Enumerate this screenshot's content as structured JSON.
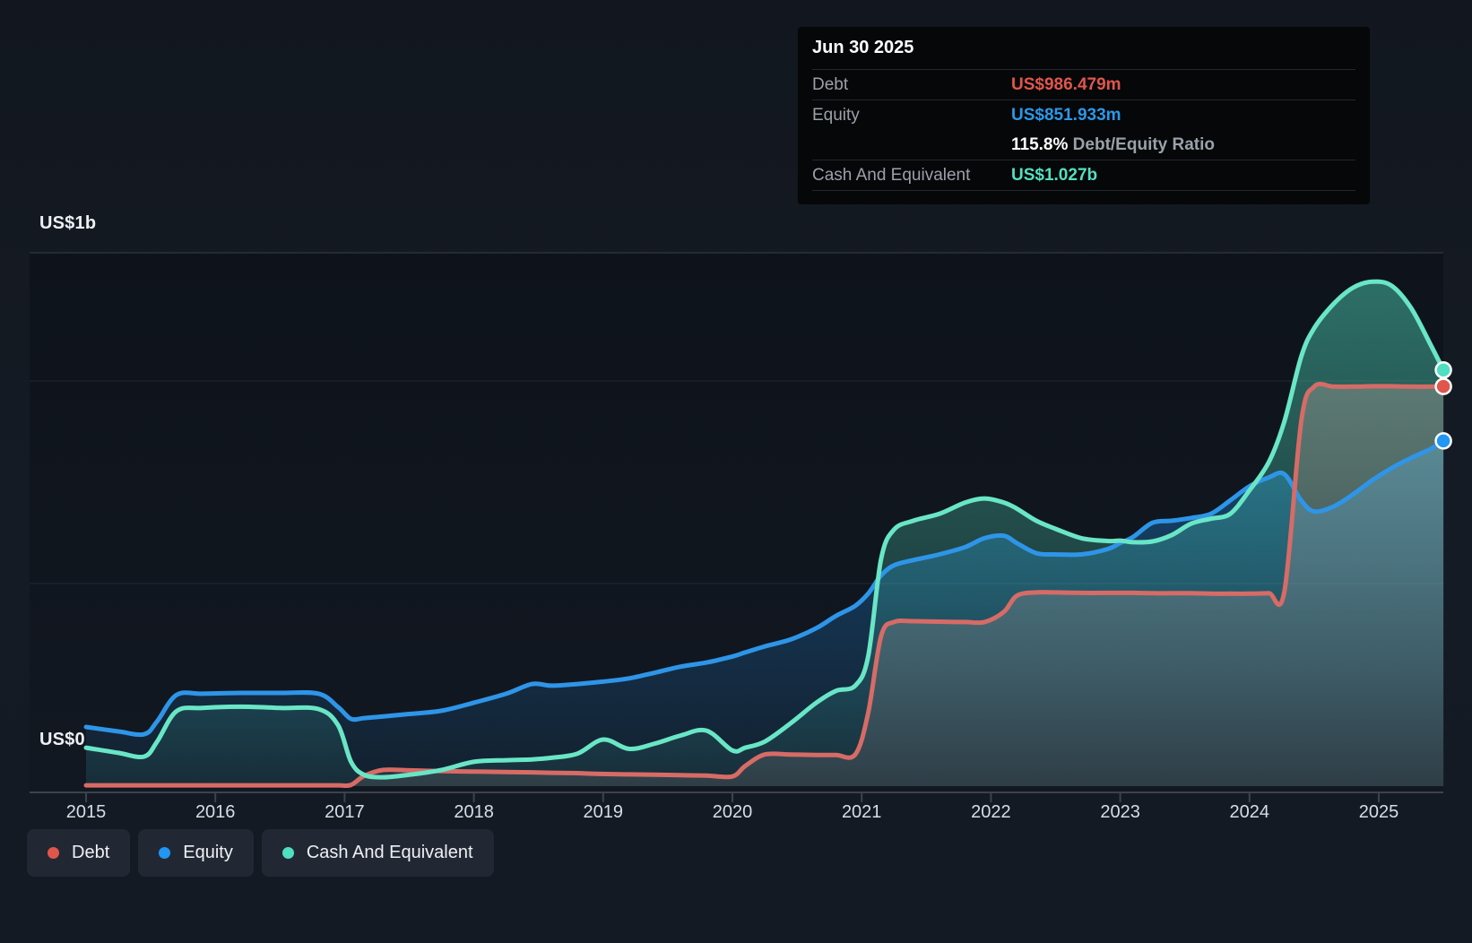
{
  "y_axis": {
    "top_label": "US$1b",
    "bottom_label": "US$0"
  },
  "tooltip": {
    "date": "Jun 30 2025",
    "debt_label": "Debt",
    "debt_value": "US$986.479m",
    "equity_label": "Equity",
    "equity_value": "US$851.933m",
    "ratio_value": "115.8%",
    "ratio_label": " Debt/Equity Ratio",
    "cash_label": "Cash And Equivalent",
    "cash_value": "US$1.027b"
  },
  "legend": {
    "items": [
      {
        "label": "Debt",
        "color": "#e1564a"
      },
      {
        "label": "Equity",
        "color": "#2196f3"
      },
      {
        "label": "Cash And Equivalent",
        "color": "#50dfc0"
      }
    ]
  },
  "colors": {
    "debt_line": "#d76b66",
    "debt_dot": "#e1564a",
    "equity_line": "#2e95e8",
    "equity_dot": "#2196f3",
    "cash_line": "#69e6c6",
    "cash_dot": "#50dfc0",
    "grid_top": "#2b323d",
    "grid_faint": "#222a34",
    "axis": "#3a434e",
    "tick_label": "#d8dde3",
    "plot_bg_top": "#0e131b",
    "plot_bg_bottom": "#121821"
  },
  "chart_data": {
    "type": "area",
    "unit": "US$ millions",
    "x_ticks": [
      2015,
      2016,
      2017,
      2018,
      2019,
      2020,
      2021,
      2022,
      2023,
      2024,
      2025
    ],
    "y_ticks": [
      {
        "value": 0,
        "label": "US$0"
      },
      {
        "value": 1000,
        "label": "US$1b"
      }
    ],
    "ylim": [
      0,
      1316
    ],
    "grid": "horizontal-only",
    "legend_position": "bottom-left",
    "end_date": "Jun 30 2025",
    "end_values": {
      "Debt": 986.479,
      "Equity": 851.933,
      "Cash And Equivalent": 1027
    },
    "x": [
      2015.0,
      2015.25,
      2015.45,
      2015.55,
      2015.7,
      2015.9,
      2016.2,
      2016.5,
      2016.8,
      2016.95,
      2017.05,
      2017.15,
      2017.3,
      2017.5,
      2017.75,
      2018.0,
      2018.25,
      2018.45,
      2018.6,
      2018.8,
      2019.0,
      2019.2,
      2019.4,
      2019.6,
      2019.8,
      2020.0,
      2020.1,
      2020.25,
      2020.45,
      2020.65,
      2020.8,
      2020.95,
      2021.05,
      2021.15,
      2021.25,
      2021.4,
      2021.6,
      2021.8,
      2021.95,
      2022.1,
      2022.2,
      2022.35,
      2022.5,
      2022.7,
      2022.9,
      2023.0,
      2023.1,
      2023.25,
      2023.4,
      2023.55,
      2023.7,
      2023.85,
      2024.0,
      2024.15,
      2024.27,
      2024.4,
      2024.5,
      2024.65,
      2024.8,
      2024.95,
      2025.1,
      2025.25,
      2025.4,
      2025.5
    ],
    "series": [
      {
        "name": "Debt",
        "color": "#d76b66",
        "dot_color": "#e1564a",
        "fill_color": "#d8b5ad",
        "fill_op_top": 0.3,
        "fill_op_bottom": 0.12,
        "values": [
          2,
          2,
          2,
          2,
          2,
          2,
          2,
          2,
          2,
          2,
          3,
          25,
          40,
          39,
          37,
          36,
          35,
          34,
          33,
          32,
          30,
          29,
          28,
          27,
          26,
          24,
          50,
          78,
          78,
          77,
          77,
          78,
          180,
          370,
          405,
          407,
          406,
          405,
          405,
          430,
          470,
          478,
          478,
          477,
          477,
          477,
          477,
          476,
          476,
          476,
          475,
          475,
          475,
          476,
          480,
          900,
          986,
          986,
          986,
          987,
          987,
          986,
          986,
          986.479
        ]
      },
      {
        "name": "Equity",
        "color": "#2e95e8",
        "dot_color": "#2196f3",
        "fill_color": "#2196f3",
        "fill_op_top": 0.38,
        "fill_op_bottom": 0.06,
        "values": [
          146,
          135,
          128,
          160,
          225,
          228,
          230,
          230,
          228,
          195,
          166,
          168,
          172,
          178,
          186,
          206,
          228,
          252,
          248,
          252,
          258,
          266,
          280,
          295,
          305,
          320,
          330,
          345,
          362,
          390,
          420,
          445,
          475,
          520,
          545,
          558,
          572,
          590,
          612,
          618,
          600,
          575,
          572,
          572,
          585,
          600,
          615,
          650,
          655,
          662,
          672,
          705,
          740,
          762,
          770,
          705,
          678,
          690,
          720,
          755,
          785,
          810,
          832,
          851.933
        ]
      },
      {
        "name": "Cash And Equivalent",
        "color": "#69e6c6",
        "dot_color": "#50dfc0",
        "fill_color": "#52dfc2",
        "fill_op_top": 0.45,
        "fill_op_bottom": 0.07,
        "values": [
          95,
          82,
          73,
          110,
          185,
          193,
          196,
          193,
          190,
          150,
          60,
          28,
          22,
          28,
          40,
          60,
          64,
          66,
          70,
          80,
          115,
          92,
          105,
          125,
          137,
          88,
          95,
          110,
          155,
          206,
          235,
          248,
          320,
          560,
          633,
          655,
          672,
          700,
          710,
          700,
          685,
          655,
          635,
          612,
          605,
          606,
          602,
          604,
          620,
          648,
          660,
          672,
          730,
          800,
          900,
          1060,
          1130,
          1190,
          1230,
          1245,
          1235,
          1180,
          1090,
          1027
        ]
      }
    ]
  }
}
